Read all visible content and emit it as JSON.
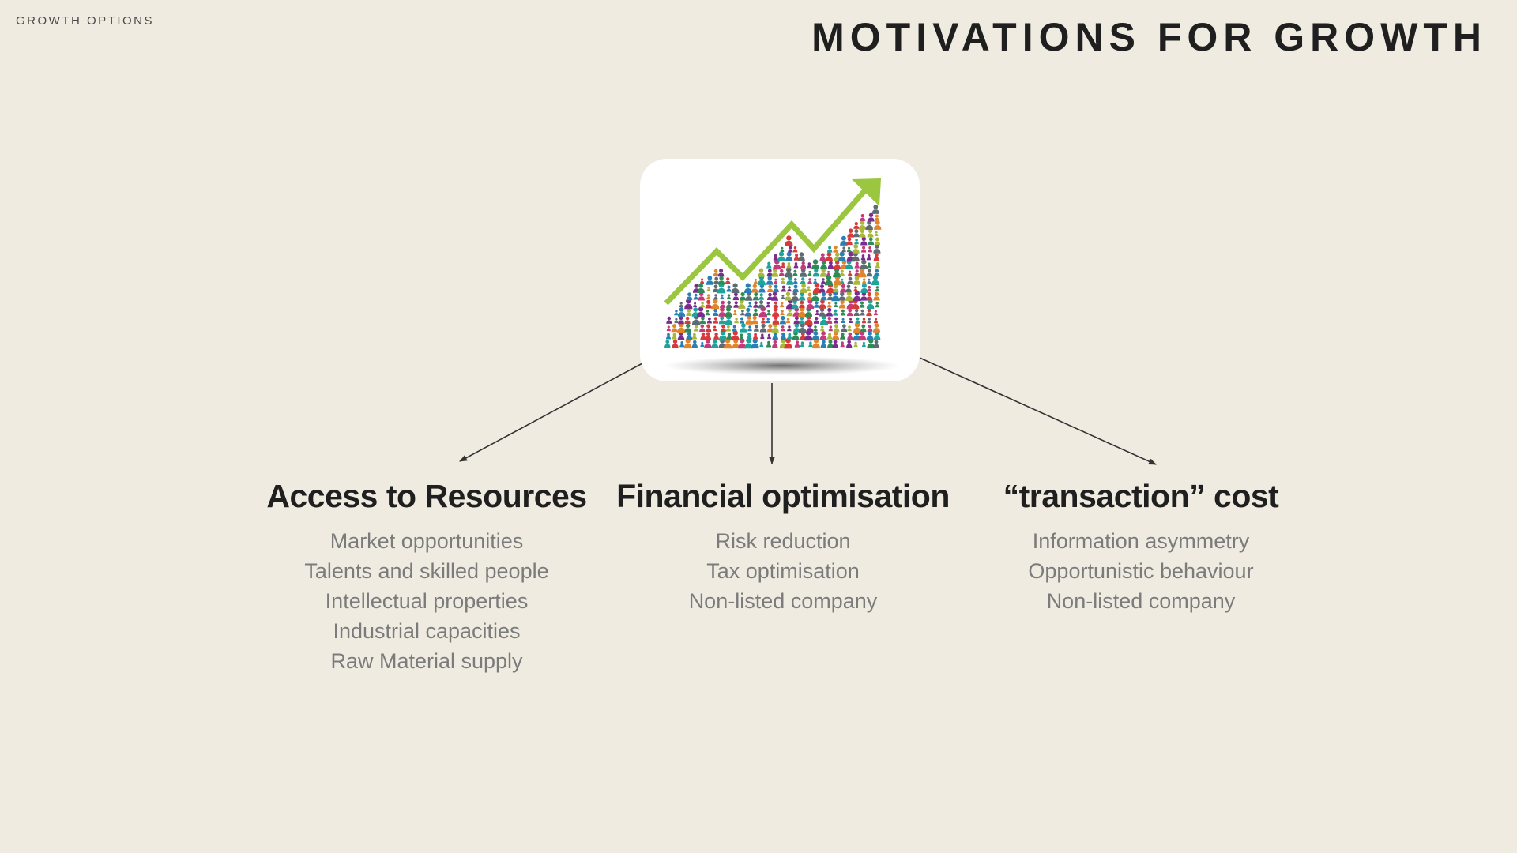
{
  "header": {
    "section_label": "GROWTH OPTIONS",
    "title": "MOTIVATIONS FOR GROWTH"
  },
  "icon": {
    "name": "growth-chart-people-icon",
    "arrow_color": "#9bc63f",
    "people_colors": [
      "#d63a3a",
      "#2e8b57",
      "#7b2d8e",
      "#2a7fb5",
      "#e0852b",
      "#1fa39a",
      "#a9b73a",
      "#c23b7a",
      "#5f6b73"
    ]
  },
  "columns": [
    {
      "title": "Access to Resources",
      "items": [
        "Market opportunities",
        "Talents and skilled people",
        "Intellectual properties",
        "Industrial capacities",
        "Raw Material supply"
      ]
    },
    {
      "title": "Financial optimisation",
      "items": [
        "Risk reduction",
        "Tax optimisation",
        "Non-listed company"
      ]
    },
    {
      "title": "“transaction” cost",
      "items": [
        "Information asymmetry",
        "Opportunistic behaviour",
        "Non-listed company"
      ]
    }
  ]
}
